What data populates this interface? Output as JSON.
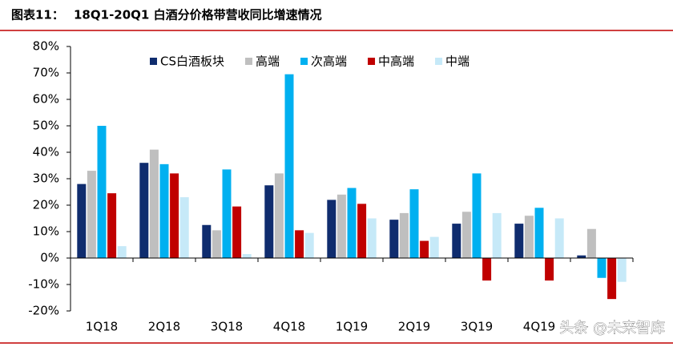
{
  "chart_data": {
    "type": "bar",
    "figure_label": "图表11：",
    "title": "18Q1-20Q1 白酒分价格带营收同比增速情况",
    "categories": [
      "1Q18",
      "2Q18",
      "3Q18",
      "4Q18",
      "1Q19",
      "2Q19",
      "3Q19",
      "4Q19",
      null
    ],
    "series": [
      {
        "name": "CS白酒板块",
        "color": "#0f2c6e",
        "values": [
          28,
          36,
          12.5,
          27.5,
          22,
          14.5,
          13,
          13,
          1
        ]
      },
      {
        "name": "高端",
        "color": "#bfbfbf",
        "values": [
          33,
          41,
          10.5,
          32,
          24,
          17,
          17.5,
          16,
          11
        ]
      },
      {
        "name": "次高端",
        "color": "#00b0f0",
        "values": [
          50,
          35.5,
          33.5,
          69.5,
          26.5,
          26,
          32,
          19,
          -7.5
        ]
      },
      {
        "name": "中高端",
        "color": "#c00000",
        "values": [
          24.5,
          32,
          19.5,
          10.5,
          20.5,
          6.5,
          -8.5,
          -8.5,
          -15.5
        ]
      },
      {
        "name": "中端",
        "color": "#c6e9f8",
        "values": [
          4.5,
          23,
          1.5,
          9.5,
          15,
          8,
          17,
          15,
          -9
        ]
      }
    ],
    "ylim": [
      -20,
      80
    ],
    "yticks": [
      {
        "value": -20,
        "label": "-20%"
      },
      {
        "value": -10,
        "label": "-10%"
      },
      {
        "value": 0,
        "label": "0%"
      },
      {
        "value": 10,
        "label": "10%"
      },
      {
        "value": 20,
        "label": "20%"
      },
      {
        "value": 30,
        "label": "30%"
      },
      {
        "value": 40,
        "label": "40%"
      },
      {
        "value": 50,
        "label": "50%"
      },
      {
        "value": 60,
        "label": "60%"
      },
      {
        "value": 70,
        "label": "70%"
      },
      {
        "value": 80,
        "label": "80%"
      }
    ],
    "grid": false,
    "watermark": "头条 @未来智库"
  }
}
